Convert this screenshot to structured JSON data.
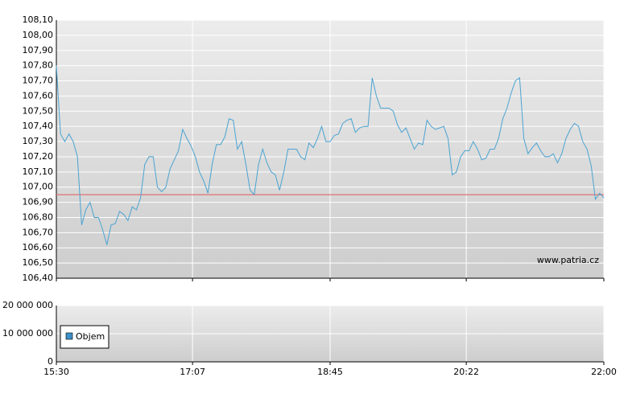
{
  "chart_data": [
    {
      "type": "line",
      "color": "#4aa3d2",
      "xlim": [
        "15:30",
        "22:00"
      ],
      "xticks": [
        "15:30",
        "17:07",
        "18:45",
        "20:22",
        "22:00"
      ],
      "ylim": [
        106.4,
        108.1
      ],
      "yticks": [
        {
          "value": 106.4,
          "label": "106,40"
        },
        {
          "value": 106.5,
          "label": "106,50"
        },
        {
          "value": 106.6,
          "label": "106,60"
        },
        {
          "value": 106.7,
          "label": "106,70"
        },
        {
          "value": 106.8,
          "label": "106,80"
        },
        {
          "value": 106.9,
          "label": "106,90"
        },
        {
          "value": 107.0,
          "label": "107,00"
        },
        {
          "value": 107.1,
          "label": "107,10"
        },
        {
          "value": 107.2,
          "label": "107,20"
        },
        {
          "value": 107.3,
          "label": "107,30"
        },
        {
          "value": 107.4,
          "label": "107,40"
        },
        {
          "value": 107.5,
          "label": "107,50"
        },
        {
          "value": 107.6,
          "label": "107,60"
        },
        {
          "value": 107.7,
          "label": "107,70"
        },
        {
          "value": 107.8,
          "label": "107,80"
        },
        {
          "value": 107.9,
          "label": "107,90"
        },
        {
          "value": 108.0,
          "label": "108,00"
        },
        {
          "value": 108.1,
          "label": "108,10"
        }
      ],
      "grid": true,
      "reference_line": {
        "value": 106.95,
        "color": "#e07070"
      },
      "watermark": "www.patria.cz",
      "x": [
        "15:30",
        "15:33",
        "15:36",
        "15:39",
        "15:42",
        "15:45",
        "15:48",
        "15:51",
        "15:54",
        "15:57",
        "16:00",
        "16:03",
        "16:06",
        "16:09",
        "16:12",
        "16:15",
        "16:18",
        "16:21",
        "16:24",
        "16:27",
        "16:30",
        "16:33",
        "16:36",
        "16:39",
        "16:42",
        "16:45",
        "16:48",
        "16:51",
        "16:54",
        "16:57",
        "17:00",
        "17:03",
        "17:06",
        "17:09",
        "17:12",
        "17:15",
        "17:18",
        "17:21",
        "17:24",
        "17:27",
        "17:30",
        "17:33",
        "17:36",
        "17:39",
        "17:42",
        "17:45",
        "17:48",
        "17:51",
        "17:54",
        "17:57",
        "18:00",
        "18:03",
        "18:06",
        "18:09",
        "18:12",
        "18:15",
        "18:18",
        "18:21",
        "18:24",
        "18:27",
        "18:30",
        "18:33",
        "18:36",
        "18:39",
        "18:42",
        "18:45",
        "18:48",
        "18:51",
        "18:54",
        "18:57",
        "19:00",
        "19:03",
        "19:06",
        "19:09",
        "19:12",
        "19:15",
        "19:18",
        "19:21",
        "19:24",
        "19:27",
        "19:30",
        "19:33",
        "19:36",
        "19:39",
        "19:42",
        "19:45",
        "19:48",
        "19:51",
        "19:54",
        "19:57",
        "20:00",
        "20:03",
        "20:06",
        "20:09",
        "20:12",
        "20:15",
        "20:18",
        "20:21",
        "20:24",
        "20:27",
        "20:30",
        "20:33",
        "20:36",
        "20:39",
        "20:42",
        "20:45",
        "20:48",
        "20:51",
        "20:54",
        "20:57",
        "21:00",
        "21:03",
        "21:06",
        "21:09",
        "21:12",
        "21:15",
        "21:18",
        "21:21",
        "21:24",
        "21:27",
        "21:30",
        "21:33",
        "21:36",
        "21:39",
        "21:42",
        "21:45",
        "21:48",
        "21:51",
        "21:54",
        "21:57",
        "22:00"
      ],
      "values": [
        107.8,
        107.35,
        107.3,
        107.35,
        107.3,
        107.2,
        106.75,
        106.85,
        106.9,
        106.8,
        106.8,
        106.72,
        106.62,
        106.75,
        106.76,
        106.84,
        106.82,
        106.78,
        106.87,
        106.85,
        106.93,
        107.15,
        107.2,
        107.2,
        107.0,
        106.97,
        107.0,
        107.12,
        107.18,
        107.24,
        107.38,
        107.32,
        107.27,
        107.2,
        107.1,
        107.04,
        106.96,
        107.15,
        107.28,
        107.28,
        107.33,
        107.45,
        107.44,
        107.25,
        107.3,
        107.15,
        106.98,
        106.95,
        107.15,
        107.25,
        107.16,
        107.1,
        107.08,
        106.98,
        107.1,
        107.25,
        107.25,
        107.25,
        107.2,
        107.18,
        107.29,
        107.26,
        107.32,
        107.4,
        107.3,
        107.3,
        107.34,
        107.35,
        107.42,
        107.44,
        107.45,
        107.36,
        107.39,
        107.4,
        107.4,
        107.72,
        107.6,
        107.52,
        107.52,
        107.52,
        107.5,
        107.41,
        107.36,
        107.39,
        107.32,
        107.25,
        107.29,
        107.28,
        107.44,
        107.4,
        107.38,
        107.39,
        107.4,
        107.32,
        107.08,
        107.1,
        107.2,
        107.24,
        107.24,
        107.3,
        107.25,
        107.18,
        107.19,
        107.25,
        107.25,
        107.32,
        107.45,
        107.52,
        107.62,
        107.7,
        107.72,
        107.32,
        107.22,
        107.26,
        107.29,
        107.24,
        107.2,
        107.2,
        107.22,
        107.16,
        107.22,
        107.32,
        107.38,
        107.42,
        107.4,
        107.3,
        107.25,
        107.14,
        106.92,
        106.96,
        106.93
      ]
    },
    {
      "type": "bar",
      "xlim": [
        "15:30",
        "22:00"
      ],
      "xticks": [
        "15:30",
        "17:07",
        "18:45",
        "20:22",
        "22:00"
      ],
      "ylim": [
        0,
        20000000
      ],
      "yticks": [
        0,
        {
          "value": 10000000,
          "label": "10 000 000"
        },
        {
          "value": 20000000,
          "label": "20 000 000"
        }
      ],
      "grid": true,
      "legend": "bottom-left",
      "series": [
        {
          "name": "Objem",
          "color": "#3d8fc8"
        }
      ]
    }
  ]
}
